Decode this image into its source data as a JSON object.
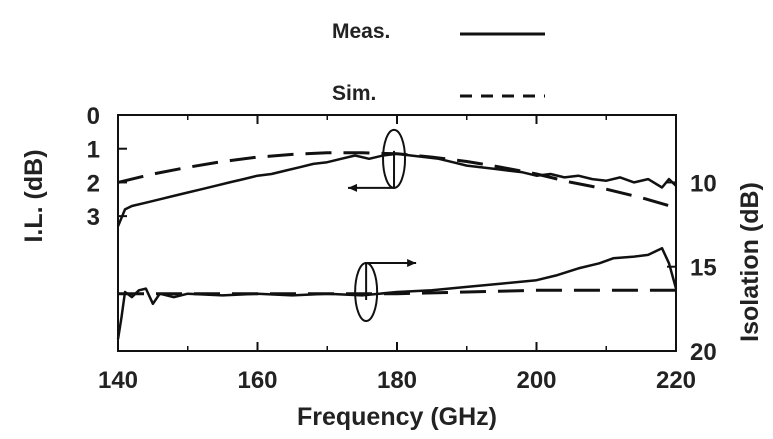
{
  "chart_data": {
    "type": "line",
    "title": "",
    "xlabel": "Frequency (GHz)",
    "ylabel_left": "I.L. (dB)",
    "ylabel_right": "Isolation (dB)",
    "xlim": [
      140,
      220
    ],
    "x_ticks": [
      140,
      160,
      180,
      200,
      220
    ],
    "x_tick_labels": [
      "140",
      "160",
      "180",
      "200",
      "220"
    ],
    "minor_x_ticks": [
      150,
      170,
      190,
      210
    ],
    "left_axis": {
      "range": [
        0,
        7
      ],
      "inverted": true,
      "ticks": [
        0,
        1,
        2,
        3
      ],
      "tick_labels": [
        "0",
        "1",
        "2",
        "3"
      ]
    },
    "right_axis": {
      "range": [
        6,
        20
      ],
      "inverted": true,
      "ticks": [
        10,
        15,
        20
      ],
      "tick_labels": [
        "10",
        "15",
        "20"
      ]
    },
    "grid": false,
    "legend": {
      "position": "top-center",
      "entries": [
        {
          "label": "Meas.",
          "style": "solid"
        },
        {
          "label": "Sim.",
          "style": "dashed"
        }
      ]
    },
    "series": [
      {
        "axis": "left",
        "style": "solid",
        "x": [
          140,
          141,
          142,
          144,
          146,
          148,
          150,
          152,
          154,
          156,
          158,
          160,
          162,
          164,
          166,
          168,
          170,
          172,
          174,
          176,
          178,
          180,
          182,
          184,
          186,
          188,
          190,
          192,
          194,
          196,
          198,
          200,
          202,
          204,
          206,
          208,
          210,
          212,
          214,
          216,
          218,
          219,
          220
        ],
        "y": [
          3.3,
          2.8,
          2.7,
          2.6,
          2.5,
          2.4,
          2.3,
          2.2,
          2.1,
          2.0,
          1.9,
          1.8,
          1.75,
          1.65,
          1.55,
          1.45,
          1.4,
          1.3,
          1.2,
          1.3,
          1.2,
          1.15,
          1.2,
          1.25,
          1.3,
          1.4,
          1.5,
          1.55,
          1.6,
          1.65,
          1.7,
          1.8,
          1.75,
          1.85,
          1.8,
          1.9,
          1.95,
          1.85,
          2.0,
          1.9,
          2.15,
          1.9,
          2.1
        ]
      },
      {
        "axis": "left",
        "style": "dashed",
        "x": [
          140,
          145,
          150,
          155,
          160,
          165,
          170,
          175,
          180,
          185,
          190,
          195,
          200,
          205,
          210,
          215,
          220
        ],
        "y": [
          2.0,
          1.75,
          1.55,
          1.38,
          1.25,
          1.17,
          1.12,
          1.12,
          1.15,
          1.25,
          1.38,
          1.55,
          1.75,
          2.0,
          2.2,
          2.45,
          2.75
        ]
      },
      {
        "axis": "right",
        "style": "solid",
        "x": [
          140,
          140.5,
          141,
          142,
          143,
          144,
          145,
          146,
          148,
          150,
          155,
          160,
          165,
          170,
          175,
          180,
          185,
          190,
          195,
          200,
          203,
          206,
          209,
          211,
          214,
          216,
          218,
          219,
          220
        ],
        "y": [
          19.3,
          18.0,
          16.5,
          16.8,
          16.4,
          16.3,
          17.2,
          16.6,
          16.8,
          16.6,
          16.7,
          16.6,
          16.7,
          16.6,
          16.7,
          16.5,
          16.4,
          16.2,
          16.0,
          15.8,
          15.5,
          15.1,
          14.8,
          14.5,
          14.4,
          14.3,
          13.9,
          14.8,
          16.3
        ]
      },
      {
        "axis": "right",
        "style": "dashed",
        "x": [
          140,
          150,
          160,
          170,
          180,
          190,
          200,
          210,
          220
        ],
        "y": [
          16.6,
          16.6,
          16.6,
          16.6,
          16.6,
          16.5,
          16.4,
          16.4,
          16.4
        ]
      }
    ],
    "annotations": [
      {
        "type": "ellipse-arrow",
        "target_axis": "left",
        "direction": "left",
        "x": 179,
        "y_left": 1.3
      },
      {
        "type": "ellipse-arrow",
        "target_axis": "right",
        "direction": "right",
        "x": 175,
        "y_right": 16.5
      }
    ]
  }
}
